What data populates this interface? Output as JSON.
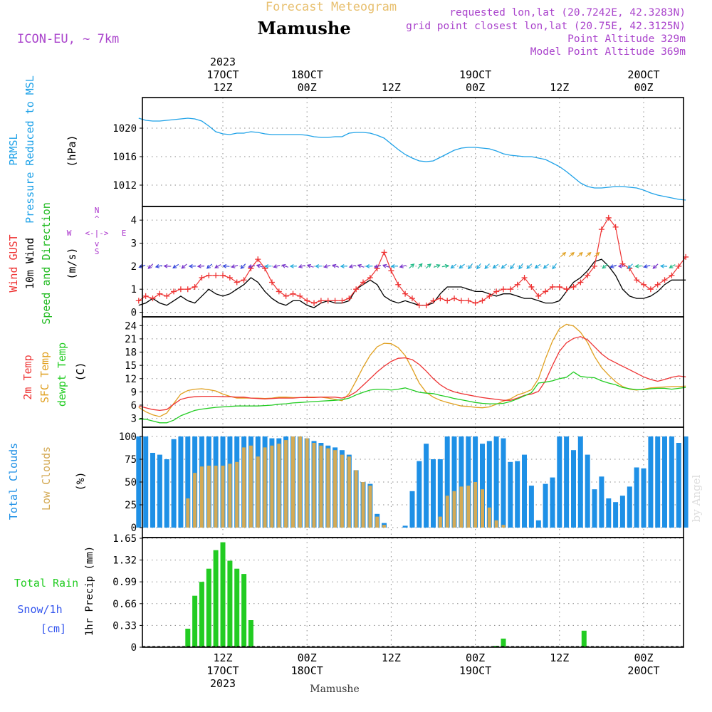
{
  "header": {
    "product": "Forecast Meteogram",
    "location": "Mamushe",
    "model": "ICON-EU, ~ 7km",
    "requested": "requested lon,lat (20.7242E, 42.3283N)",
    "grid_point": "grid point closest lon,lat (20.75E, 42.3125N)",
    "point_alt": "Point Altitude 329m",
    "model_alt": "Model Point Altitude 369m",
    "watermark": "by Angel",
    "footer_location": "Mamushe"
  },
  "time_axis": {
    "top": [
      {
        "t": 12,
        "lines": [
          "2023",
          "17OCT",
          "12Z"
        ]
      },
      {
        "t": 24,
        "lines": [
          "18OCT",
          "00Z"
        ]
      },
      {
        "t": 36,
        "lines": [
          "12Z"
        ]
      },
      {
        "t": 48,
        "lines": [
          "19OCT",
          "00Z"
        ]
      },
      {
        "t": 60,
        "lines": [
          "12Z"
        ]
      },
      {
        "t": 72,
        "lines": [
          "20OCT",
          "00Z"
        ]
      }
    ],
    "bottom": [
      {
        "t": 12,
        "lines": [
          "12Z",
          "17OCT",
          "2023"
        ]
      },
      {
        "t": 24,
        "lines": [
          "00Z",
          "18OCT"
        ]
      },
      {
        "t": 36,
        "lines": [
          "12Z"
        ]
      },
      {
        "t": 48,
        "lines": [
          "00Z",
          "19OCT"
        ]
      },
      {
        "t": 60,
        "lines": [
          "12Z"
        ]
      },
      {
        "t": 72,
        "lines": [
          "00Z",
          "20OCT"
        ]
      }
    ]
  },
  "colors": {
    "pressure": "#1fa2e8",
    "gust": "#ee3333",
    "wind": "#000000",
    "wind_dir": "#22bb22",
    "temp2m": "#ee3333",
    "sfc": "#e0a020",
    "dewpt": "#22cc22",
    "total_clouds": "#1e90e6",
    "low_clouds": "#d4aa55",
    "rain": "#22cc22",
    "snow": "#3355ee",
    "compass": "#aa33cc",
    "header_purple": "#aa44cc",
    "header_gold": "#e8c070",
    "grid": "#888888"
  },
  "panel_labels": {
    "pressure": {
      "l1": "PRMSL",
      "l2": "Pressure Reduced to MSL",
      "unit": "(hPa)"
    },
    "wind": {
      "l1": "Wind GUST",
      "l2": "10m Wind",
      "l3": "Speed and Direction",
      "unit": "(m/s)"
    },
    "temp": {
      "l1": "2m Temp",
      "l2": "SFC Temp",
      "l3": "dewpt Temp",
      "unit": "(C)"
    },
    "clouds": {
      "l1": "Total Clouds",
      "l2": "Low Clouds",
      "unit": "(%)"
    },
    "precip": {
      "l1": "Total  Rain",
      "l2": "Snow/1h",
      "l3": "[cm]",
      "unit": "1hr Precip (mm)"
    },
    "compass": {
      "n": "N",
      "w": "W",
      "e": "E",
      "s": "S",
      "ew": "<-|->",
      "ns_up": "^",
      "ns_dn": "v"
    }
  },
  "chart_data": [
    {
      "type": "line",
      "id": "pressure",
      "title": "PRMSL Pressure Reduced to MSL",
      "ylabel": "(hPa)",
      "ylim": [
        1009,
        1024
      ],
      "yticks": [
        1012,
        1016,
        1020
      ],
      "t0": 0,
      "dt": 1,
      "series": [
        {
          "name": "PRMSL",
          "values": [
            1021.4,
            1021.1,
            1021.0,
            1021.0,
            1021.1,
            1021.2,
            1021.3,
            1021.4,
            1021.3,
            1021.0,
            1020.3,
            1019.5,
            1019.2,
            1019.1,
            1019.3,
            1019.3,
            1019.5,
            1019.4,
            1019.2,
            1019.1,
            1019.1,
            1019.1,
            1019.1,
            1019.1,
            1019.0,
            1018.8,
            1018.7,
            1018.7,
            1018.8,
            1018.8,
            1019.3,
            1019.4,
            1019.4,
            1019.3,
            1019.0,
            1018.6,
            1017.8,
            1017.0,
            1016.3,
            1015.8,
            1015.4,
            1015.3,
            1015.4,
            1015.9,
            1016.4,
            1016.9,
            1017.2,
            1017.3,
            1017.3,
            1017.2,
            1017.1,
            1016.8,
            1016.4,
            1016.2,
            1016.1,
            1016.0,
            1016.0,
            1015.8,
            1015.6,
            1015.1,
            1014.6,
            1013.9,
            1013.1,
            1012.3,
            1011.8,
            1011.6,
            1011.6,
            1011.7,
            1011.8,
            1011.8,
            1011.7,
            1011.6,
            1011.3,
            1010.9,
            1010.6,
            1010.4,
            1010.2,
            1010.0,
            1009.9
          ]
        }
      ]
    },
    {
      "type": "line",
      "id": "wind",
      "title": "Wind GUST / 10m Wind Speed and Direction",
      "ylabel": "(m/s)",
      "ylim": [
        -0.2,
        4.5
      ],
      "yticks": [
        0,
        1,
        2,
        3,
        4
      ],
      "t0": 0,
      "dt": 1,
      "series": [
        {
          "name": "Wind GUST",
          "values": [
            0.5,
            0.7,
            0.6,
            0.8,
            0.7,
            0.9,
            1.0,
            1.0,
            1.1,
            1.5,
            1.6,
            1.6,
            1.6,
            1.5,
            1.3,
            1.4,
            1.9,
            2.3,
            1.9,
            1.3,
            0.9,
            0.7,
            0.8,
            0.7,
            0.5,
            0.4,
            0.5,
            0.5,
            0.5,
            0.5,
            0.6,
            1.0,
            1.3,
            1.5,
            1.9,
            2.6,
            1.8,
            1.2,
            0.8,
            0.6,
            0.3,
            0.3,
            0.5,
            0.6,
            0.5,
            0.6,
            0.5,
            0.5,
            0.4,
            0.5,
            0.7,
            0.9,
            1.0,
            1.0,
            1.2,
            1.5,
            1.1,
            0.7,
            0.9,
            1.1,
            1.1,
            1.0,
            1.1,
            1.3,
            1.6,
            2.0,
            3.6,
            4.1,
            3.7,
            2.1,
            1.9,
            1.4,
            1.2,
            1.0,
            1.2,
            1.4,
            1.6,
            2.0,
            2.4
          ]
        },
        {
          "name": "10m Wind",
          "values": [
            0.3,
            0.4,
            0.6,
            0.4,
            0.3,
            0.5,
            0.7,
            0.5,
            0.4,
            0.7,
            1.0,
            0.8,
            0.7,
            0.8,
            1.0,
            1.2,
            1.5,
            1.3,
            0.9,
            0.6,
            0.4,
            0.3,
            0.5,
            0.5,
            0.3,
            0.2,
            0.4,
            0.5,
            0.4,
            0.4,
            0.5,
            1.0,
            1.2,
            1.4,
            1.2,
            0.7,
            0.5,
            0.4,
            0.5,
            0.4,
            0.3,
            0.3,
            0.4,
            0.8,
            1.1,
            1.1,
            1.1,
            1.0,
            0.9,
            0.9,
            0.8,
            0.7,
            0.8,
            0.8,
            0.7,
            0.6,
            0.6,
            0.5,
            0.4,
            0.4,
            0.5,
            0.9,
            1.3,
            1.5,
            1.8,
            2.2,
            2.3,
            2.0,
            1.6,
            1.0,
            0.7,
            0.6,
            0.6,
            0.7,
            0.9,
            1.2,
            1.4,
            1.4,
            1.4
          ]
        }
      ],
      "wind_direction_arrows": {
        "t0": 0.5,
        "dt": 1.2,
        "y": 2.0,
        "count": 64
      }
    },
    {
      "type": "line",
      "id": "temperature",
      "title": "2m Temp / SFC Temp / dewpt Temp",
      "ylabel": "(C)",
      "ylim": [
        1,
        25.5
      ],
      "yticks": [
        3,
        6,
        9,
        12,
        15,
        18,
        21,
        24
      ],
      "t0": 0,
      "dt": 1,
      "series": [
        {
          "name": "2m Temp",
          "values": [
            5.8,
            5.4,
            5.0,
            4.8,
            5.0,
            6.2,
            7.3,
            7.7,
            7.9,
            8.0,
            8.0,
            8.0,
            7.9,
            7.9,
            7.8,
            7.8,
            7.6,
            7.5,
            7.4,
            7.5,
            7.6,
            7.6,
            7.6,
            7.7,
            7.7,
            7.7,
            7.8,
            7.8,
            7.8,
            7.6,
            8.1,
            9.0,
            10.5,
            12.0,
            13.5,
            14.8,
            15.9,
            16.6,
            16.7,
            16.3,
            15.2,
            13.7,
            12.0,
            10.6,
            9.6,
            9.0,
            8.6,
            8.3,
            8.0,
            7.7,
            7.5,
            7.3,
            7.1,
            7.1,
            7.6,
            8.2,
            8.5,
            9.1,
            11.5,
            15.0,
            18.2,
            20.1,
            21.1,
            21.5,
            20.8,
            19.2,
            17.6,
            16.4,
            15.6,
            14.8,
            14.0,
            13.2,
            12.4,
            11.8,
            11.4,
            11.8,
            12.3,
            12.6,
            12.4
          ]
        },
        {
          "name": "SFC Temp",
          "values": [
            5.5,
            4.5,
            3.8,
            3.4,
            4.2,
            6.4,
            8.5,
            9.3,
            9.6,
            9.7,
            9.5,
            9.2,
            8.5,
            8.0,
            7.6,
            7.6,
            7.6,
            7.6,
            7.5,
            7.6,
            7.8,
            7.8,
            7.7,
            7.7,
            7.8,
            7.8,
            7.8,
            7.6,
            7.3,
            7.0,
            8.6,
            11.5,
            14.6,
            17.3,
            19.2,
            20.0,
            19.9,
            19.0,
            17.2,
            14.2,
            11.0,
            8.9,
            7.8,
            7.1,
            6.6,
            6.2,
            5.8,
            5.7,
            5.5,
            5.4,
            5.6,
            6.2,
            6.9,
            7.4,
            8.3,
            8.8,
            9.5,
            12.0,
            16.5,
            20.5,
            23.3,
            24.3,
            23.9,
            22.5,
            20.2,
            17.0,
            14.5,
            12.8,
            11.3,
            10.2,
            9.6,
            9.4,
            9.6,
            9.9,
            10.0,
            10.1,
            10.2,
            10.2,
            10.3
          ]
        },
        {
          "name": "dewpt Temp",
          "values": [
            2.8,
            2.8,
            2.4,
            2.0,
            2.0,
            2.6,
            3.6,
            4.2,
            4.8,
            5.1,
            5.3,
            5.5,
            5.6,
            5.7,
            5.8,
            5.8,
            5.8,
            5.8,
            5.9,
            6.0,
            6.2,
            6.3,
            6.5,
            6.6,
            6.7,
            6.8,
            6.9,
            7.0,
            7.1,
            7.2,
            7.6,
            8.3,
            8.9,
            9.4,
            9.6,
            9.6,
            9.4,
            9.6,
            9.9,
            9.4,
            8.9,
            8.7,
            8.6,
            8.2,
            7.9,
            7.5,
            7.2,
            6.9,
            6.6,
            6.4,
            6.3,
            6.3,
            6.4,
            6.8,
            7.4,
            8.1,
            8.8,
            11.0,
            11.2,
            11.5,
            12.0,
            12.3,
            13.5,
            12.5,
            12.3,
            12.2,
            11.5,
            11.0,
            10.6,
            10.0,
            9.7,
            9.5,
            9.5,
            9.7,
            9.8,
            9.8,
            9.6,
            9.8,
            10.0
          ]
        }
      ]
    },
    {
      "type": "bar",
      "id": "clouds",
      "title": "Total Clouds / Low Clouds",
      "ylabel": "(%)",
      "ylim": [
        0,
        100
      ],
      "yticks": [
        0,
        25,
        50,
        75,
        100
      ],
      "t0": 0,
      "dt": 1,
      "series": [
        {
          "name": "Total Clouds",
          "values": [
            100,
            100,
            82,
            80,
            75,
            97,
            100,
            100,
            100,
            100,
            100,
            100,
            100,
            100,
            100,
            100,
            100,
            100,
            100,
            98,
            98,
            100,
            100,
            100,
            98,
            95,
            93,
            90,
            88,
            85,
            80,
            63,
            50,
            48,
            15,
            5,
            0,
            0,
            2,
            40,
            73,
            92,
            75,
            75,
            100,
            100,
            100,
            100,
            100,
            92,
            95,
            100,
            98,
            72,
            73,
            80,
            46,
            8,
            48,
            55,
            100,
            100,
            85,
            100,
            80,
            42,
            56,
            32,
            28,
            35,
            45,
            66,
            65,
            100,
            100,
            100,
            100,
            93,
            100
          ]
        },
        {
          "name": "Low Clouds",
          "values": [
            0,
            0,
            0,
            0,
            0,
            0,
            0,
            32,
            60,
            67,
            68,
            68,
            68,
            70,
            72,
            88,
            90,
            78,
            88,
            90,
            92,
            96,
            100,
            100,
            98,
            93,
            90,
            87,
            85,
            80,
            78,
            63,
            50,
            46,
            12,
            3,
            0,
            0,
            0,
            0,
            0,
            0,
            0,
            12,
            35,
            40,
            45,
            46,
            50,
            42,
            22,
            8,
            3,
            0,
            0,
            0,
            0,
            0,
            0,
            0,
            0,
            0,
            0,
            0,
            0,
            0,
            0,
            0,
            0,
            0,
            0,
            0,
            0,
            0,
            0,
            0,
            0,
            0,
            0
          ]
        }
      ]
    },
    {
      "type": "bar",
      "id": "precip",
      "title": "1hr Precip (mm)",
      "ylabel": "1hr Precip (mm)",
      "ylim": [
        0,
        1.65
      ],
      "yticks": [
        0,
        0.33,
        0.66,
        0.99,
        1.32,
        1.65
      ],
      "t0": 0,
      "dt": 1,
      "series": [
        {
          "name": "Total Rain",
          "values": [
            0,
            0,
            0,
            0,
            0,
            0,
            0,
            0.28,
            0.78,
            0.99,
            1.19,
            1.47,
            1.59,
            1.31,
            1.19,
            1.11,
            0.41,
            0,
            0,
            0,
            0,
            0,
            0,
            0,
            0,
            0,
            0,
            0,
            0,
            0,
            0,
            0,
            0,
            0,
            0,
            0,
            0,
            0,
            0,
            0,
            0,
            0,
            0,
            0,
            0,
            0,
            0,
            0,
            0,
            0,
            0,
            0.02,
            0.13,
            0,
            0,
            0,
            0,
            0,
            0,
            0,
            0,
            0,
            0,
            0,
            0,
            0,
            0,
            0,
            0,
            0,
            0,
            0,
            0,
            0,
            0,
            0,
            0,
            0,
            0
          ]
        },
        {
          "name": "Snow/1h",
          "values": [
            0,
            0,
            0,
            0,
            0,
            0,
            0,
            0,
            0,
            0,
            0,
            0,
            0,
            0,
            0,
            0,
            0,
            0,
            0,
            0,
            0,
            0,
            0,
            0,
            0,
            0,
            0,
            0,
            0,
            0,
            0,
            0,
            0,
            0,
            0,
            0,
            0,
            0,
            0,
            0,
            0,
            0,
            0,
            0,
            0,
            0,
            0,
            0,
            0,
            0,
            0,
            0,
            0,
            0,
            0,
            0,
            0,
            0,
            0,
            0,
            0,
            0,
            0,
            0,
            0,
            0,
            0,
            0,
            0,
            0,
            0,
            0,
            0,
            0,
            0,
            0,
            0,
            0,
            0
          ]
        }
      ],
      "extra_bars": [
        {
          "t": 63.5,
          "value": 0.25
        }
      ]
    }
  ]
}
